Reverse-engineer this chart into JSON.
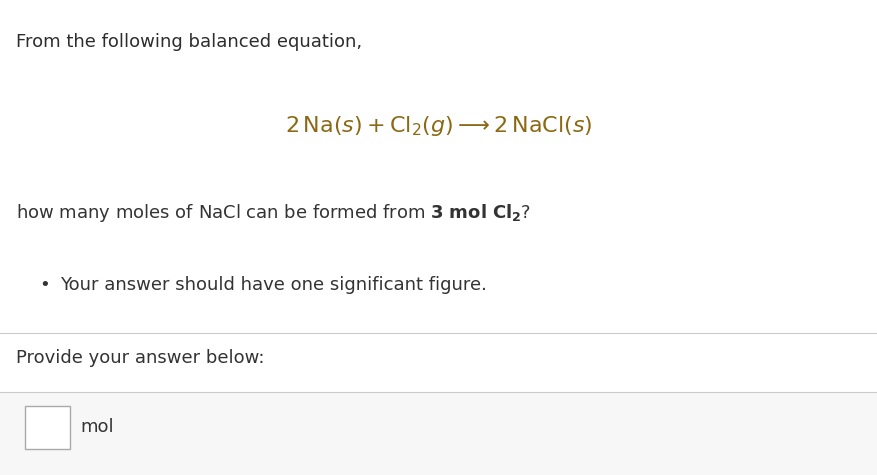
{
  "bg_color": "#ffffff",
  "dark_text": "#2d2d2d",
  "line1": "From the following balanced equation,",
  "bullet_text": "Your answer should have one significant figure.",
  "provide_text": "Provide your answer below:",
  "mol_label": "mol",
  "divider_color": "#cccccc",
  "input_border_color": "#aaaaaa",
  "equation_color": "#8B6914",
  "txt_color": "#333333",
  "bottom_bg": "#f7f7f7"
}
